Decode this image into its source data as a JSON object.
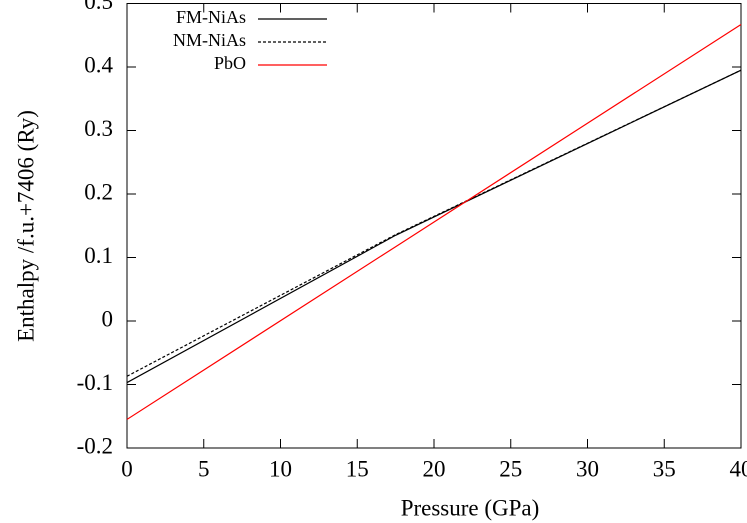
{
  "chart_data": {
    "type": "line",
    "x_label": "Pressure (GPa)",
    "y_label": "Enthalpy /f.u.+7406 (Ry)",
    "x": [
      0,
      17.5,
      40
    ],
    "series": [
      {
        "name": "FM-NiAs",
        "color": "#000000",
        "dashed": false,
        "values": [
          -0.097,
          0.135,
          0.395
        ]
      },
      {
        "name": "NM-NiAs",
        "color": "#000000",
        "dashed": true,
        "values": [
          -0.087,
          0.136,
          0.395
        ]
      },
      {
        "name": "PbO",
        "color": "#ff0000",
        "dashed": false,
        "values": [
          -0.155,
          0.117,
          0.467
        ]
      }
    ],
    "xlim": [
      0,
      40
    ],
    "xticks": [
      0,
      5,
      10,
      15,
      20,
      25,
      30,
      35,
      40
    ],
    "ylim": [
      -0.2,
      0.5
    ],
    "yticks": [
      -0.2,
      -0.1,
      0,
      0.1,
      0.2,
      0.3,
      0.4,
      0.5
    ],
    "legend": "upper left"
  }
}
